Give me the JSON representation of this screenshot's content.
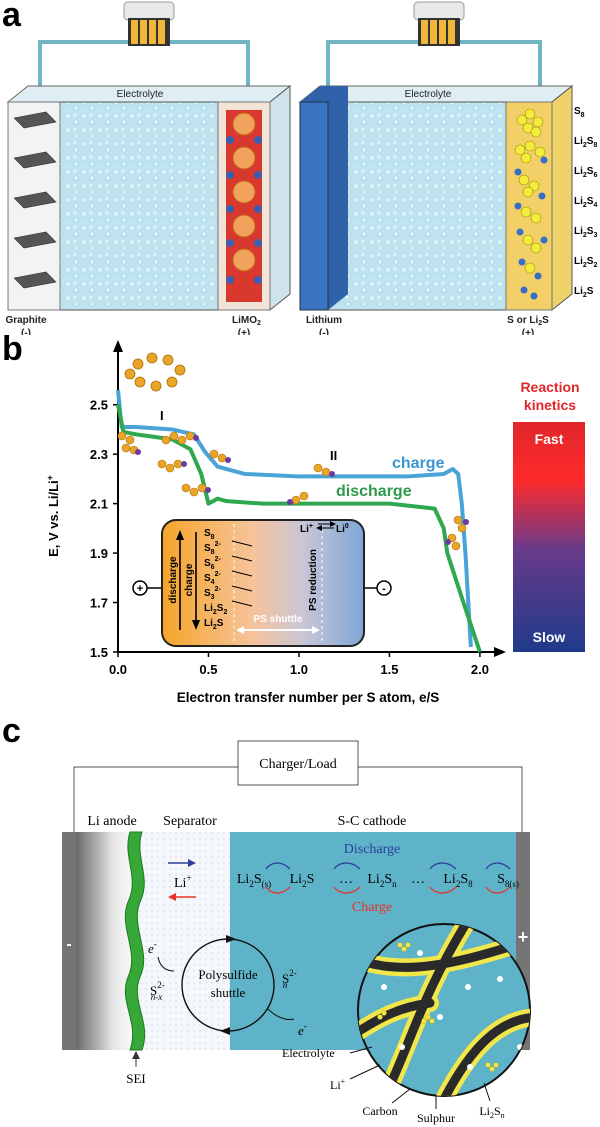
{
  "panel_a": {
    "letter": "a",
    "left_cell": {
      "electrolyte": "Electrolyte",
      "anode_label": "Graphite",
      "anode_sign": "(-)",
      "cathode_label_main": "LiMO",
      "cathode_label_sub": "2",
      "cathode_sign": "(+)"
    },
    "right_cell": {
      "electrolyte": "Electrolyte",
      "anode_label": "Lithium",
      "anode_sign": "(-)",
      "cathode_label": "S or Li",
      "cathode_label_sub": "2",
      "cathode_label_end": "S",
      "cathode_sign": "(+)",
      "species": [
        {
          "main": "S",
          "sub1": "8",
          "mid": "",
          "sub2": ""
        },
        {
          "main": "Li",
          "sub1": "2",
          "mid": "S",
          "sub2": "8"
        },
        {
          "main": "Li",
          "sub1": "2",
          "mid": "S",
          "sub2": "6"
        },
        {
          "main": "Li",
          "sub1": "2",
          "mid": "S",
          "sub2": "4"
        },
        {
          "main": "Li",
          "sub1": "2",
          "mid": "S",
          "sub2": "3"
        },
        {
          "main": "Li",
          "sub1": "2",
          "mid": "S",
          "sub2": "2"
        },
        {
          "main": "Li",
          "sub1": "2",
          "mid": "S",
          "sub2": ""
        }
      ]
    }
  },
  "panel_b": {
    "letter": "b",
    "ylabel": "E, V vs. Li/Li",
    "ylabel_sup": "+",
    "xlabel": "Electron transfer number per S atom, e/S",
    "plateau_I": "I",
    "plateau_II": "II",
    "charge_label": "charge",
    "discharge_label": "discharge",
    "kinetics_title_1": "Reaction",
    "kinetics_title_2": "kinetics",
    "kinetics_fast": "Fast",
    "kinetics_slow": "Slow",
    "inset": {
      "charge": "charge",
      "discharge": "discharge",
      "ps_reduction": "PS reduction",
      "ps_shuttle": "PS shuttle",
      "li_plus": "Li",
      "li_zero": "Li",
      "plus_sign": "+",
      "minus_sign": "-",
      "species": [
        "S8",
        "S8 2-",
        "S6 2-",
        "S4 2-",
        "S3 2-",
        "Li2S2",
        "Li2S"
      ]
    }
  },
  "chart_data": {
    "type": "line",
    "xlabel": "Electron transfer number per S atom, e/S",
    "ylabel": "E, V vs. Li/Li+",
    "xlim": [
      0,
      2.1
    ],
    "ylim": [
      1.5,
      2.6
    ],
    "xticks": [
      "0.0",
      "0.5",
      "1.0",
      "1.5",
      "2.0"
    ],
    "yticks": [
      "2.5",
      "2.3",
      "2.1",
      "1.9",
      "1.7",
      "1.5"
    ],
    "series": [
      {
        "name": "charge",
        "color": "#4aa3d6",
        "x": [
          0.0,
          0.02,
          0.1,
          0.3,
          0.42,
          0.48,
          0.55,
          0.7,
          1.0,
          1.3,
          1.6,
          1.8,
          1.85,
          1.88,
          1.9,
          1.92,
          1.95
        ],
        "y": [
          2.56,
          2.41,
          2.41,
          2.4,
          2.38,
          2.31,
          2.25,
          2.22,
          2.21,
          2.21,
          2.21,
          2.22,
          2.24,
          2.22,
          2.1,
          1.9,
          1.52
        ]
      },
      {
        "name": "discharge",
        "color": "#2fa84f",
        "x": [
          0.0,
          0.03,
          0.1,
          0.2,
          0.3,
          0.4,
          0.46,
          0.5,
          0.55,
          0.6,
          0.8,
          1.2,
          1.5,
          1.75,
          1.8,
          1.82,
          1.9,
          2.0
        ],
        "y": [
          2.5,
          2.39,
          2.38,
          2.37,
          2.36,
          2.32,
          2.22,
          2.1,
          2.12,
          2.11,
          2.1,
          2.1,
          2.1,
          2.08,
          2.0,
          1.9,
          1.72,
          1.5
        ]
      }
    ]
  },
  "panel_c": {
    "letter": "c",
    "charger": "Charger/Load",
    "li_anode": "Li anode",
    "separator": "Separator",
    "cathode": "S-C cathode",
    "minus": "-",
    "plus": "+",
    "li_ion": "Li",
    "li_ion_sup": "+",
    "discharge": "Discharge",
    "charge": "Charge",
    "chain": [
      {
        "t": "Li",
        "s1": "2",
        "m": "S",
        "s2": "(s)"
      },
      {
        "t": "Li",
        "s1": "2",
        "m": "S",
        "s2": ""
      },
      {
        "t": "…",
        "s1": "",
        "m": "",
        "s2": ""
      },
      {
        "t": "Li",
        "s1": "2",
        "m": "S",
        "s2": "n"
      },
      {
        "t": "…",
        "s1": "",
        "m": "",
        "s2": ""
      },
      {
        "t": "Li",
        "s1": "2",
        "m": "S",
        "s2": "8"
      },
      {
        "t": "S",
        "s1": "8(s)",
        "m": "",
        "s2": ""
      }
    ],
    "electron": "e",
    "electron_sup": "-",
    "snx": "S",
    "snx_sup": "2-",
    "snx_sub": "n-x",
    "sn": "S",
    "sn_sup": "2-",
    "sn_sub": "n",
    "shuttle_1": "Polysulfide",
    "shuttle_2": "shuttle",
    "sei": "SEI",
    "electrolyte": "Electrolyte",
    "li_small": "Li",
    "li_small_sup": "+",
    "carbon": "Carbon",
    "sulphur": "Sulphur",
    "li2sn": "Li",
    "li2sn_sub1": "2",
    "li2sn_mid": "S",
    "li2sn_sub2": "n"
  }
}
